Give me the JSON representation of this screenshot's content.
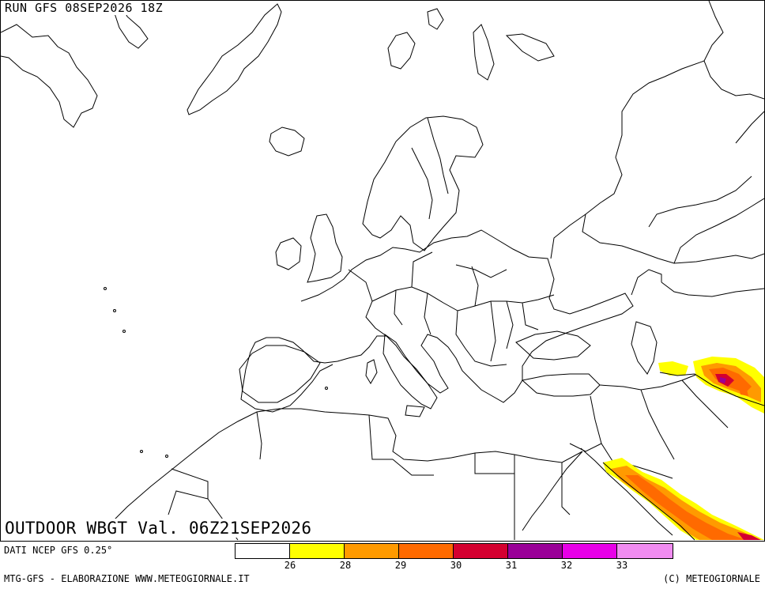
{
  "header": {
    "run_label": "RUN GFS 08SEP2026 18Z"
  },
  "map": {
    "product_label": "OUTDOOR WBGT Val. 06Z21SEP2026",
    "region": "Europe, North Africa, Middle East"
  },
  "footer": {
    "data_source": "DATI NCEP GFS 0.25°",
    "elaboration": "MTG-GFS - ELABORAZIONE WWW.METEOGIORNALE.IT",
    "copyright": "(C) METEOGIORNALE"
  },
  "legend": {
    "colors": [
      "#ffffff",
      "#ffff00",
      "#ff9a00",
      "#ff6a00",
      "#d40030",
      "#9a0098",
      "#e800e8",
      "#f08cf0"
    ],
    "tick_labels": [
      "26",
      "28",
      "29",
      "30",
      "31",
      "32",
      "33"
    ]
  }
}
